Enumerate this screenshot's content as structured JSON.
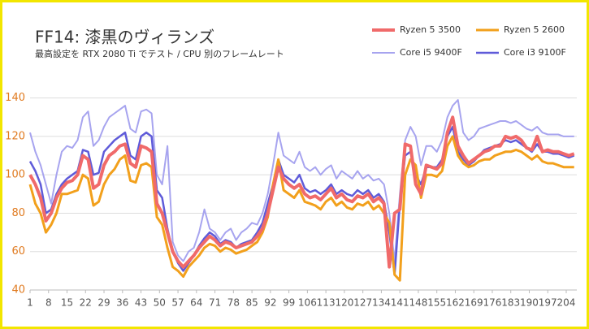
{
  "chart_data": {
    "type": "line",
    "title": "FF14: 漆黒のヴィランズ",
    "subtitle": "最高設定を RTX 2080 Ti でテスト  / CPU 別のフレームレート",
    "x": [
      1,
      3,
      5,
      7,
      9,
      11,
      13,
      15,
      17,
      19,
      21,
      23,
      25,
      27,
      29,
      31,
      33,
      35,
      37,
      39,
      41,
      43,
      45,
      47,
      49,
      51,
      53,
      55,
      57,
      59,
      61,
      63,
      65,
      67,
      69,
      71,
      73,
      75,
      77,
      79,
      81,
      83,
      85,
      87,
      89,
      91,
      93,
      95,
      97,
      99,
      101,
      103,
      105,
      107,
      109,
      111,
      113,
      115,
      117,
      119,
      121,
      123,
      125,
      127,
      129,
      131,
      133,
      135,
      137,
      139,
      141,
      143,
      145,
      147,
      149,
      151,
      153,
      155,
      157,
      159,
      161,
      163,
      165,
      167,
      169,
      171,
      173,
      175,
      177,
      179,
      181,
      183,
      185,
      187,
      189,
      191,
      193,
      195,
      197,
      199,
      201,
      203,
      205,
      207
    ],
    "xlim": [
      1,
      208
    ],
    "xticks": [
      1,
      8,
      15,
      22,
      29,
      36,
      43,
      50,
      57,
      64,
      71,
      78,
      85,
      92,
      99,
      106,
      113,
      120,
      127,
      134,
      141,
      148,
      155,
      162,
      169,
      176,
      183,
      190,
      197,
      204
    ],
    "ylim": [
      40,
      150
    ],
    "yticks": [
      40,
      60,
      80,
      100,
      120,
      140
    ],
    "grid": true,
    "legend": "top-right",
    "series": [
      {
        "name": "Ryzen 5 3500",
        "color": "#f06a6a",
        "width": 4,
        "values": [
          100,
          95,
          88,
          76,
          80,
          88,
          93,
          96,
          97,
          100,
          110,
          108,
          93,
          95,
          105,
          110,
          112,
          115,
          116,
          106,
          104,
          115,
          114,
          112,
          85,
          80,
          70,
          60,
          55,
          52,
          55,
          58,
          62,
          65,
          68,
          66,
          63,
          65,
          64,
          62,
          63,
          64,
          65,
          68,
          72,
          80,
          92,
          104,
          98,
          95,
          93,
          95,
          90,
          88,
          89,
          87,
          90,
          93,
          88,
          90,
          87,
          86,
          89,
          88,
          90,
          86,
          88,
          85,
          52,
          80,
          82,
          116,
          115,
          95,
          90,
          105,
          104,
          103,
          106,
          122,
          130,
          115,
          110,
          106,
          108,
          110,
          112,
          113,
          115,
          115,
          120,
          119,
          120,
          118,
          114,
          113,
          120,
          112,
          113,
          112,
          112,
          111,
          110,
          111
        ]
      },
      {
        "name": "Ryzen 5 2600",
        "color": "#f2a01c",
        "width": 3,
        "values": [
          95,
          85,
          80,
          70,
          74,
          80,
          90,
          90,
          91,
          92,
          100,
          98,
          84,
          86,
          95,
          100,
          103,
          108,
          110,
          97,
          96,
          105,
          106,
          104,
          78,
          74,
          62,
          52,
          50,
          47,
          52,
          55,
          58,
          62,
          64,
          63,
          60,
          62,
          61,
          59,
          60,
          61,
          63,
          65,
          70,
          78,
          95,
          108,
          92,
          90,
          88,
          92,
          86,
          85,
          84,
          82,
          86,
          88,
          84,
          86,
          83,
          82,
          85,
          84,
          86,
          82,
          84,
          80,
          75,
          48,
          45,
          100,
          108,
          105,
          88,
          100,
          100,
          99,
          102,
          115,
          120,
          110,
          106,
          104,
          105,
          107,
          108,
          108,
          110,
          111,
          112,
          112,
          113,
          112,
          110,
          108,
          110,
          107,
          106,
          106,
          105,
          104,
          104,
          104
        ]
      },
      {
        "name": "Core i5 9400F",
        "color": "#a7a4ef",
        "width": 2,
        "values": [
          122,
          112,
          105,
          95,
          85,
          100,
          112,
          115,
          114,
          118,
          130,
          133,
          115,
          118,
          125,
          130,
          132,
          134,
          136,
          124,
          122,
          133,
          134,
          132,
          100,
          95,
          115,
          65,
          58,
          55,
          60,
          62,
          70,
          82,
          72,
          70,
          66,
          70,
          72,
          66,
          70,
          72,
          75,
          74,
          80,
          90,
          105,
          122,
          110,
          108,
          106,
          112,
          104,
          102,
          104,
          100,
          103,
          105,
          98,
          102,
          100,
          98,
          102,
          98,
          100,
          97,
          98,
          95,
          80,
          55,
          90,
          118,
          125,
          120,
          105,
          115,
          115,
          112,
          118,
          130,
          136,
          139,
          122,
          118,
          120,
          124,
          125,
          126,
          127,
          128,
          128,
          127,
          128,
          126,
          124,
          123,
          125,
          122,
          121,
          121,
          121,
          120,
          120,
          120
        ]
      },
      {
        "name": "Core i3 9100F",
        "color": "#5f5bd9",
        "width": 2.5,
        "values": [
          107,
          102,
          95,
          80,
          82,
          90,
          95,
          98,
          100,
          102,
          113,
          112,
          100,
          101,
          112,
          115,
          118,
          120,
          122,
          110,
          108,
          120,
          122,
          120,
          92,
          88,
          72,
          60,
          54,
          50,
          54,
          58,
          63,
          67,
          70,
          68,
          64,
          66,
          65,
          62,
          64,
          65,
          66,
          70,
          75,
          85,
          95,
          108,
          100,
          98,
          96,
          100,
          93,
          91,
          92,
          90,
          92,
          95,
          90,
          92,
          90,
          89,
          92,
          90,
          92,
          88,
          90,
          86,
          70,
          48,
          85,
          110,
          112,
          100,
          95,
          104,
          104,
          104,
          108,
          120,
          125,
          112,
          108,
          105,
          107,
          110,
          113,
          114,
          115,
          116,
          118,
          117,
          118,
          116,
          114,
          112,
          116,
          112,
          112,
          111,
          111,
          110,
          109,
          110
        ]
      }
    ]
  }
}
